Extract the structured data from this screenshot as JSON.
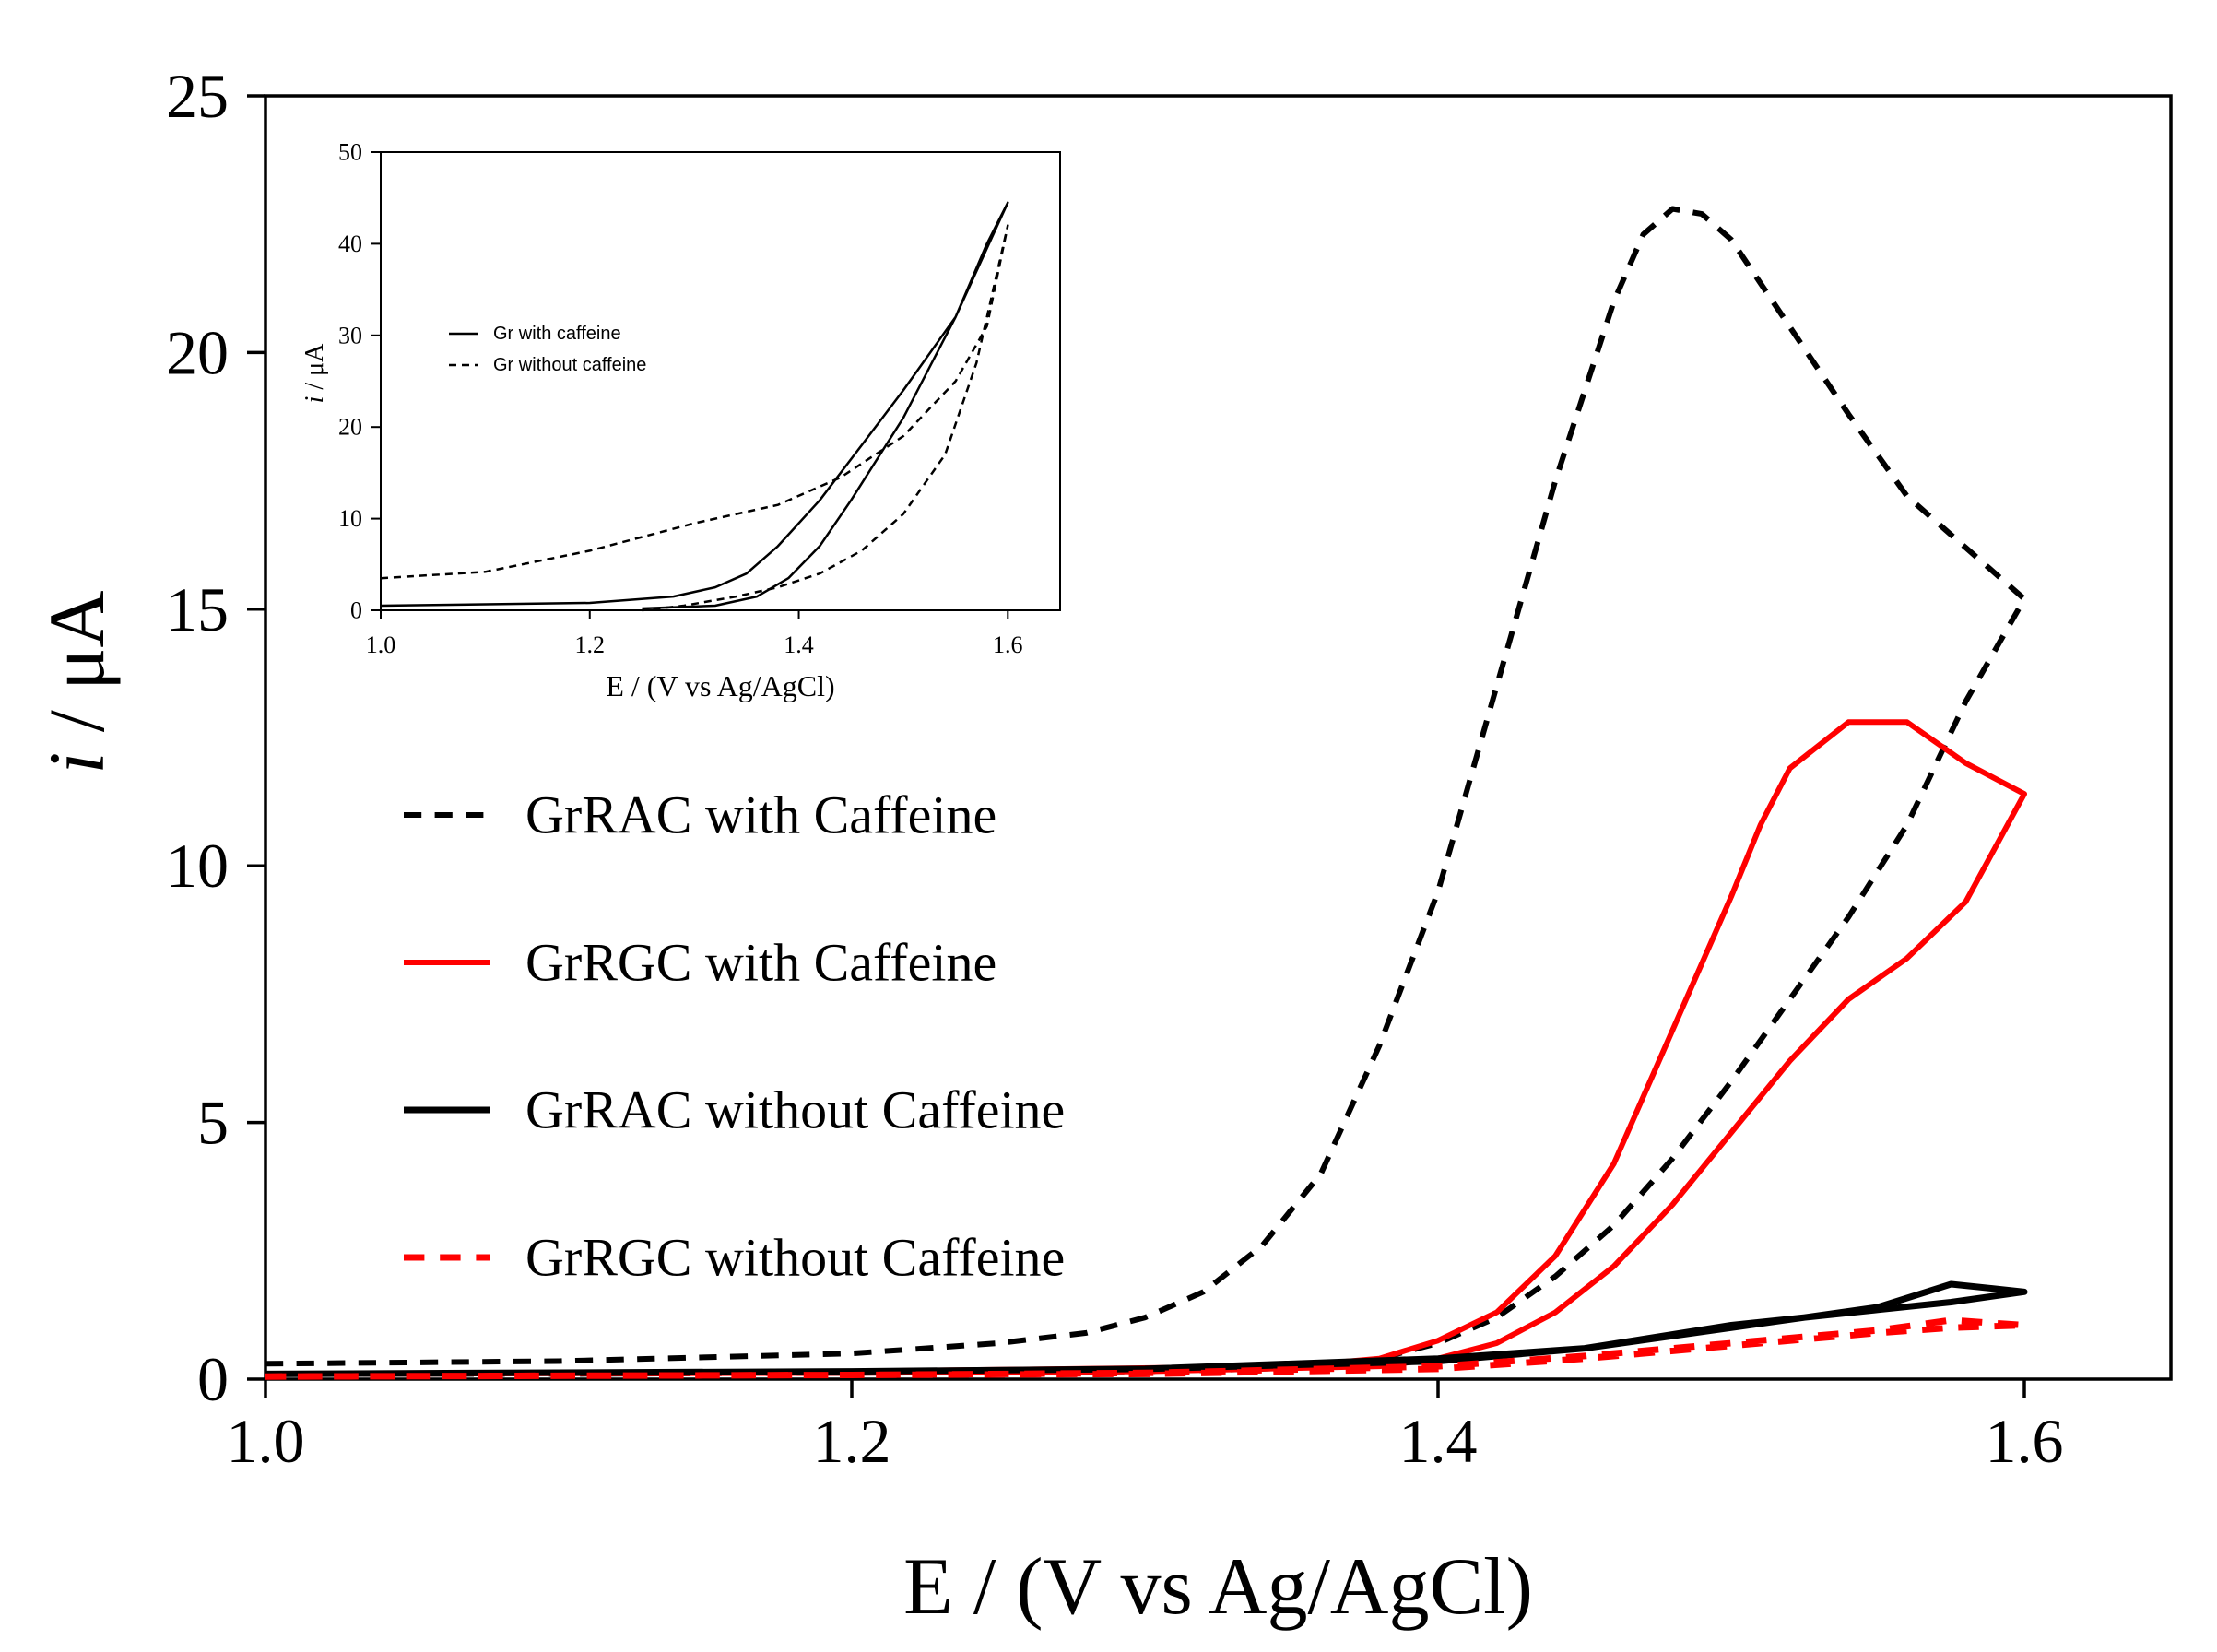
{
  "chart_data": [
    {
      "type": "line",
      "role": "main",
      "xlabel": "E / (V vs Ag/AgCl)",
      "ylabel_italic": "i",
      "ylabel_rest": " / μA",
      "xlim": [
        1.0,
        1.65
      ],
      "ylim": [
        0,
        25
      ],
      "xticks": [
        1.0,
        1.2,
        1.4,
        1.6
      ],
      "xtick_labels": [
        "1.0",
        "1.2",
        "1.4",
        "1.6"
      ],
      "yticks": [
        0,
        5,
        10,
        15,
        20,
        25
      ],
      "ytick_labels": [
        "0",
        "5",
        "10",
        "15",
        "20",
        "25"
      ],
      "grid": false,
      "legend_position": "left",
      "series": [
        {
          "name": "GrRAC with Caffeine",
          "color": "#000000",
          "dash": "dashed",
          "x": [
            1.0,
            1.1,
            1.2,
            1.25,
            1.28,
            1.3,
            1.32,
            1.34,
            1.36,
            1.38,
            1.4,
            1.42,
            1.44,
            1.46,
            1.47,
            1.48,
            1.49,
            1.5,
            1.52,
            1.54,
            1.56,
            1.58,
            1.6,
            1.58,
            1.56,
            1.54,
            1.52,
            1.5,
            1.48,
            1.46,
            1.44,
            1.42,
            1.4,
            1.38,
            1.36,
            1.34,
            1.3,
            1.2,
            1.1,
            1.0
          ],
          "y": [
            0.3,
            0.35,
            0.5,
            0.7,
            0.9,
            1.2,
            1.7,
            2.6,
            4.0,
            6.5,
            9.5,
            13.5,
            17.5,
            21.0,
            22.3,
            22.8,
            22.7,
            22.2,
            20.5,
            18.8,
            17.2,
            16.2,
            15.2,
            13.2,
            10.8,
            9.0,
            7.4,
            5.8,
            4.3,
            3.0,
            2.0,
            1.2,
            0.7,
            0.4,
            0.25,
            0.2,
            0.15,
            0.12,
            0.1,
            0.1
          ]
        },
        {
          "name": "GrRGC with Caffeine",
          "color": "#ff0000",
          "dash": "solid",
          "x": [
            1.0,
            1.2,
            1.35,
            1.38,
            1.4,
            1.42,
            1.44,
            1.46,
            1.48,
            1.5,
            1.51,
            1.52,
            1.54,
            1.56,
            1.58,
            1.6,
            1.58,
            1.56,
            1.54,
            1.52,
            1.5,
            1.48,
            1.46,
            1.44,
            1.42,
            1.4,
            1.38,
            1.3,
            1.2,
            1.0
          ],
          "y": [
            0.1,
            0.15,
            0.25,
            0.4,
            0.75,
            1.3,
            2.4,
            4.2,
            6.8,
            9.4,
            10.8,
            11.9,
            12.8,
            12.8,
            12.0,
            11.4,
            9.3,
            8.2,
            7.4,
            6.2,
            4.8,
            3.4,
            2.2,
            1.3,
            0.7,
            0.4,
            0.25,
            0.15,
            0.12,
            0.1
          ]
        },
        {
          "name": "GrRAC without Caffeine",
          "color": "#000000",
          "dash": "solid",
          "x": [
            1.0,
            1.2,
            1.3,
            1.4,
            1.45,
            1.5,
            1.55,
            1.575,
            1.6,
            1.575,
            1.55,
            1.5,
            1.45,
            1.4,
            1.3,
            1.2,
            1.0
          ],
          "y": [
            0.1,
            0.15,
            0.2,
            0.4,
            0.6,
            1.0,
            1.4,
            1.85,
            1.7,
            1.5,
            1.35,
            1.05,
            0.6,
            0.35,
            0.2,
            0.15,
            0.1
          ],
          "width": 7
        },
        {
          "name": "GrRGC without Caffeine",
          "color": "#ff0000",
          "dash": "dashed",
          "x": [
            1.0,
            1.2,
            1.3,
            1.4,
            1.45,
            1.5,
            1.55,
            1.575,
            1.6,
            1.575,
            1.55,
            1.5,
            1.45,
            1.4,
            1.3,
            1.2,
            1.0
          ],
          "y": [
            0.05,
            0.08,
            0.12,
            0.25,
            0.45,
            0.7,
            0.95,
            1.15,
            1.05,
            1.0,
            0.9,
            0.65,
            0.4,
            0.2,
            0.1,
            0.08,
            0.05
          ],
          "width": 7
        }
      ]
    },
    {
      "type": "line",
      "role": "inset",
      "xlabel": "E / (V vs Ag/AgCl)",
      "ylabel_italic": "i",
      "ylabel_rest": " / μA",
      "xlim": [
        1.0,
        1.65
      ],
      "ylim": [
        0,
        50
      ],
      "xticks": [
        1.0,
        1.2,
        1.4,
        1.6
      ],
      "xtick_labels": [
        "1.0",
        "1.2",
        "1.4",
        "1.6"
      ],
      "yticks": [
        0,
        10,
        20,
        30,
        40,
        50
      ],
      "ytick_labels": [
        "0",
        "10",
        "20",
        "30",
        "40",
        "50"
      ],
      "legend_position": "left",
      "series": [
        {
          "name": "Gr with caffeine",
          "color": "#000000",
          "dash": "solid",
          "x": [
            1.0,
            1.2,
            1.28,
            1.32,
            1.35,
            1.38,
            1.42,
            1.46,
            1.5,
            1.55,
            1.6,
            1.58,
            1.55,
            1.5,
            1.45,
            1.42,
            1.39,
            1.36,
            1.32,
            1.25
          ],
          "y": [
            0.5,
            0.8,
            1.5,
            2.5,
            4.0,
            7.0,
            12.0,
            18.0,
            24.0,
            32.0,
            44.5,
            40.0,
            32.0,
            21.0,
            12.0,
            7.0,
            3.5,
            1.5,
            0.5,
            0.2
          ]
        },
        {
          "name": "Gr without caffeine",
          "color": "#000000",
          "dash": "dashed",
          "x": [
            1.0,
            1.1,
            1.2,
            1.3,
            1.38,
            1.44,
            1.5,
            1.55,
            1.58,
            1.6,
            1.59,
            1.57,
            1.54,
            1.5,
            1.46,
            1.42,
            1.38,
            1.34,
            1.29,
            1.25
          ],
          "y": [
            3.5,
            4.2,
            6.5,
            9.5,
            11.5,
            14.5,
            19.0,
            25.0,
            31.0,
            42.0,
            37.0,
            27.0,
            17.0,
            10.5,
            6.5,
            4.0,
            2.5,
            1.5,
            0.5,
            0.0
          ]
        }
      ]
    }
  ]
}
